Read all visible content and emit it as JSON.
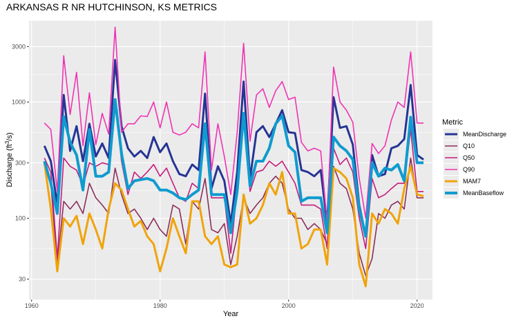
{
  "chart_data": {
    "type": "line",
    "title": "ARKANSAS R NR HUTCHINSON, KS  METRICS",
    "xlabel": "Year",
    "ylabel": "Discharge (ft^3/s)",
    "y_scale": "log10",
    "xlim": [
      1959.6,
      2022.4
    ],
    "ylim": [
      20,
      5000
    ],
    "x_ticks": [
      1960,
      1980,
      2000,
      2020
    ],
    "y_ticks": [
      30,
      100,
      300,
      1000,
      3000
    ],
    "legend": {
      "title": "Metric",
      "position": "right"
    },
    "x": [
      1962,
      1963,
      1964,
      1965,
      1966,
      1967,
      1968,
      1969,
      1970,
      1971,
      1972,
      1973,
      1974,
      1975,
      1976,
      1977,
      1978,
      1979,
      1980,
      1981,
      1982,
      1983,
      1984,
      1985,
      1986,
      1987,
      1988,
      1989,
      1990,
      1991,
      1992,
      1993,
      1994,
      1995,
      1996,
      1997,
      1998,
      1999,
      2000,
      2001,
      2002,
      2003,
      2004,
      2005,
      2006,
      2007,
      2008,
      2009,
      2010,
      2011,
      2012,
      2013,
      2014,
      2015,
      2016,
      2017,
      2018,
      2019,
      2020,
      2021
    ],
    "series": [
      {
        "name": "MeanDischarge",
        "color": "#253494",
        "values": [
          420,
          310,
          130,
          1150,
          380,
          620,
          310,
          650,
          340,
          440,
          330,
          2300,
          620,
          400,
          340,
          380,
          330,
          500,
          370,
          440,
          310,
          240,
          230,
          290,
          260,
          1180,
          180,
          280,
          210,
          90,
          250,
          1500,
          220,
          550,
          620,
          500,
          650,
          850,
          550,
          540,
          260,
          250,
          230,
          260,
          90,
          1100,
          600,
          620,
          430,
          130,
          70,
          350,
          230,
          240,
          400,
          420,
          480,
          1400,
          350,
          320
        ]
      },
      {
        "name": "Q10",
        "color": "#8c2d5a",
        "values": [
          300,
          200,
          40,
          140,
          120,
          140,
          110,
          200,
          150,
          130,
          110,
          270,
          160,
          110,
          120,
          100,
          80,
          100,
          80,
          70,
          130,
          120,
          60,
          140,
          120,
          220,
          80,
          75,
          90,
          40,
          70,
          150,
          110,
          130,
          150,
          200,
          230,
          200,
          120,
          100,
          100,
          80,
          90,
          80,
          60,
          280,
          200,
          180,
          120,
          50,
          32,
          45,
          110,
          100,
          130,
          140,
          120,
          330,
          150,
          150
        ]
      },
      {
        "name": "Q50",
        "color": "#c51b7d",
        "values": [
          330,
          250,
          45,
          330,
          280,
          260,
          190,
          300,
          280,
          300,
          290,
          1050,
          310,
          160,
          250,
          220,
          250,
          290,
          230,
          270,
          200,
          150,
          140,
          200,
          180,
          580,
          150,
          150,
          150,
          50,
          180,
          780,
          170,
          250,
          260,
          310,
          280,
          310,
          250,
          200,
          130,
          130,
          130,
          120,
          55,
          400,
          290,
          330,
          250,
          100,
          55,
          220,
          150,
          160,
          180,
          200,
          200,
          580,
          170,
          170
        ]
      },
      {
        "name": "Q90",
        "color": "#f032b4",
        "values": [
          660,
          580,
          170,
          2500,
          780,
          1800,
          420,
          1200,
          430,
          800,
          530,
          4400,
          550,
          650,
          650,
          760,
          750,
          1000,
          600,
          1000,
          550,
          520,
          550,
          650,
          600,
          2700,
          260,
          650,
          340,
          160,
          550,
          3200,
          460,
          1150,
          1300,
          900,
          1250,
          1500,
          1050,
          1100,
          450,
          380,
          400,
          380,
          90,
          2000,
          1000,
          850,
          670,
          220,
          100,
          440,
          360,
          420,
          700,
          1000,
          900,
          2700,
          660,
          660
        ]
      },
      {
        "name": "MAM7",
        "color": "#f0a30a",
        "values": [
          300,
          120,
          35,
          100,
          85,
          105,
          60,
          110,
          80,
          55,
          120,
          200,
          175,
          120,
          85,
          95,
          70,
          60,
          35,
          55,
          100,
          70,
          50,
          140,
          140,
          70,
          60,
          70,
          40,
          38,
          40,
          160,
          90,
          100,
          130,
          200,
          160,
          250,
          110,
          110,
          55,
          60,
          80,
          80,
          40,
          270,
          250,
          220,
          150,
          40,
          26,
          110,
          90,
          120,
          110,
          90,
          180,
          280,
          160,
          155
        ]
      },
      {
        "name": "MeanBaseflow",
        "color": "#0f9bcf",
        "values": [
          310,
          200,
          110,
          750,
          450,
          350,
          175,
          580,
          230,
          230,
          250,
          1050,
          360,
          180,
          210,
          215,
          220,
          210,
          175,
          175,
          165,
          150,
          145,
          160,
          175,
          650,
          160,
          160,
          160,
          75,
          170,
          800,
          190,
          310,
          310,
          400,
          650,
          760,
          420,
          370,
          140,
          150,
          150,
          150,
          75,
          500,
          420,
          380,
          320,
          120,
          70,
          300,
          230,
          270,
          260,
          290,
          210,
          740,
          300,
          300
        ]
      }
    ]
  }
}
